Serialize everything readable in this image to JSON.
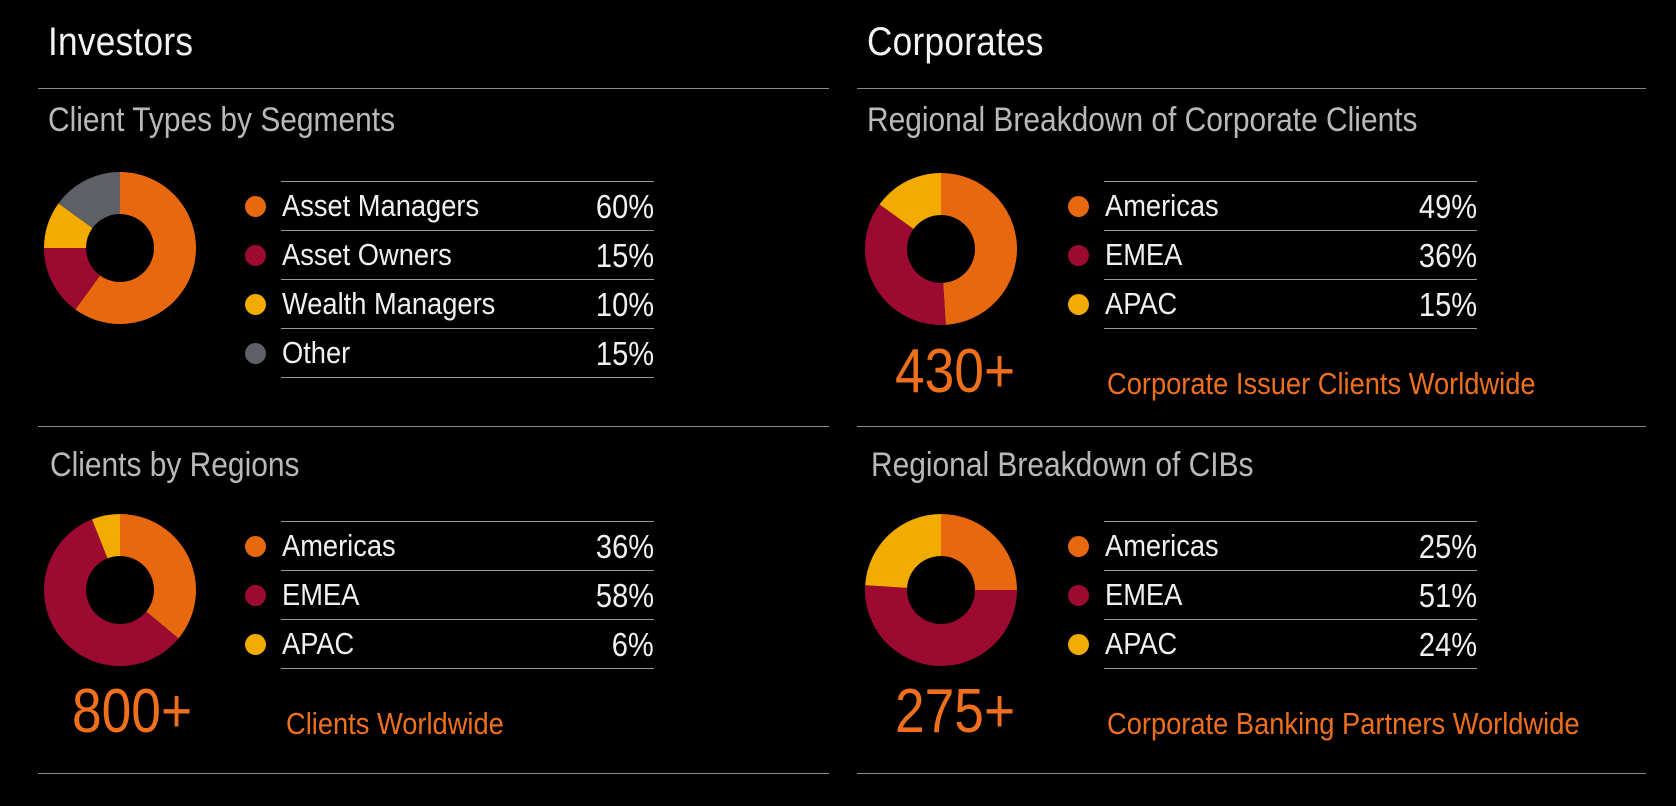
{
  "colors": {
    "orange": "#e8680f",
    "crimson": "#9c0a32",
    "yellow": "#f2ab00",
    "gray": "#5e6067",
    "accent_text": "#ee6f1c"
  },
  "investors": {
    "title": "Investors",
    "segments": {
      "title": "Client Types by Segments",
      "legend": [
        {
          "label": "Asset Managers",
          "value": "60%"
        },
        {
          "label": "Asset Owners",
          "value": "15%"
        },
        {
          "label": "Wealth Managers",
          "value": "10%"
        },
        {
          "label": "Other",
          "value": "15%"
        }
      ]
    },
    "regions": {
      "title": "Clients by Regions",
      "legend": [
        {
          "label": "Americas",
          "value": "36%"
        },
        {
          "label": "EMEA",
          "value": "58%"
        },
        {
          "label": "APAC",
          "value": "6%"
        }
      ],
      "big_number": "800+",
      "caption": "Clients Worldwide"
    }
  },
  "corporates": {
    "title": "Corporates",
    "corporate_clients": {
      "title": "Regional Breakdown of Corporate Clients",
      "legend": [
        {
          "label": "Americas",
          "value": "49%"
        },
        {
          "label": "EMEA",
          "value": "36%"
        },
        {
          "label": "APAC",
          "value": "15%"
        }
      ],
      "big_number": "430+",
      "caption": "Corporate Issuer Clients Worldwide"
    },
    "cibs": {
      "title": "Regional Breakdown of CIBs",
      "legend": [
        {
          "label": "Americas",
          "value": "25%"
        },
        {
          "label": "EMEA",
          "value": "51%"
        },
        {
          "label": "APAC",
          "value": "24%"
        }
      ],
      "big_number": "275+",
      "caption": "Corporate Banking Partners Worldwide"
    }
  },
  "chart_data": [
    {
      "type": "pie",
      "title": "Client Types by Segments",
      "categories": [
        "Asset Managers",
        "Asset Owners",
        "Wealth Managers",
        "Other"
      ],
      "values": [
        60,
        15,
        10,
        15
      ],
      "colors": [
        "#e8680f",
        "#9c0a32",
        "#f2ab00",
        "#5e6067"
      ]
    },
    {
      "type": "pie",
      "title": "Clients by Regions",
      "categories": [
        "Americas",
        "EMEA",
        "APAC"
      ],
      "values": [
        36,
        58,
        6
      ],
      "colors": [
        "#e8680f",
        "#9c0a32",
        "#f2ab00"
      ]
    },
    {
      "type": "pie",
      "title": "Regional Breakdown of Corporate Clients",
      "categories": [
        "Americas",
        "EMEA",
        "APAC"
      ],
      "values": [
        49,
        36,
        15
      ],
      "colors": [
        "#e8680f",
        "#9c0a32",
        "#f2ab00"
      ]
    },
    {
      "type": "pie",
      "title": "Regional Breakdown of CIBs",
      "categories": [
        "Americas",
        "EMEA",
        "APAC"
      ],
      "values": [
        25,
        51,
        24
      ],
      "colors": [
        "#e8680f",
        "#9c0a32",
        "#f2ab00"
      ]
    }
  ]
}
